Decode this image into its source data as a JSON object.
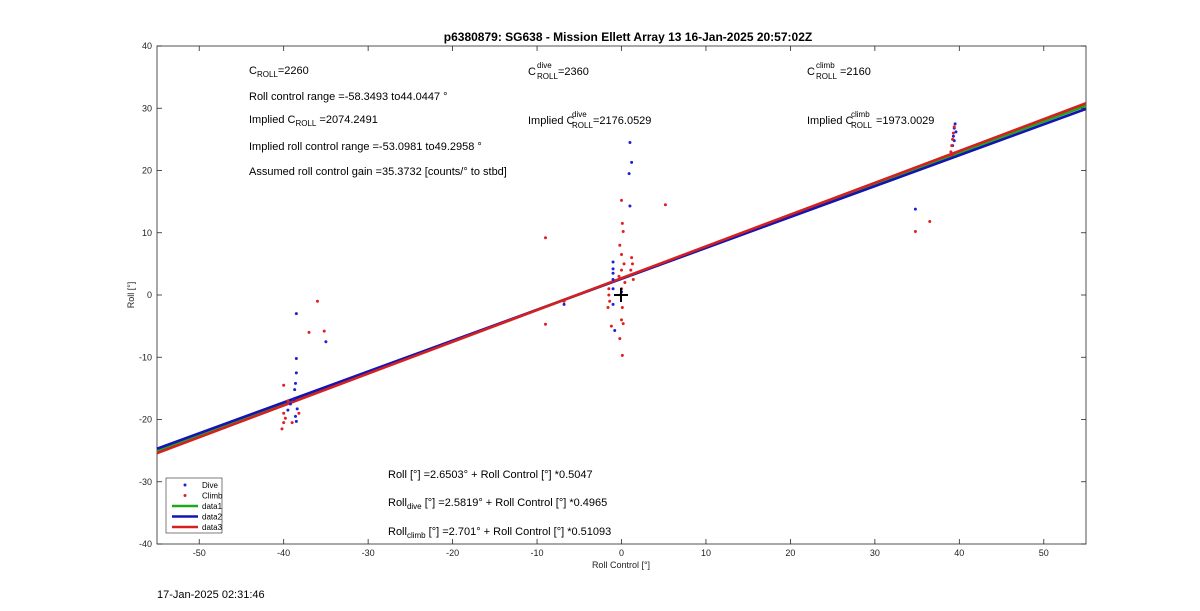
{
  "chart_data": {
    "type": "scatter",
    "title": "p6380879: SG638 - Mission Ellett Array 13 16-Jan-2025 20:57:02Z",
    "xlabel": "Roll Control [°]",
    "ylabel": "Roll [°]",
    "xlim": [
      -55,
      55
    ],
    "ylim": [
      -40,
      40
    ],
    "xticks": [
      "-50",
      "-40",
      "-30",
      "-20",
      "-10",
      "0",
      "10",
      "20",
      "30",
      "40",
      "50"
    ],
    "yticks": [
      "40",
      "30",
      "20",
      "10",
      "0",
      "-10",
      "-20",
      "-30",
      "-40"
    ],
    "grid": false,
    "legend_position": "bottom-left",
    "series": [
      {
        "name": "Dive",
        "color": "#1f1fd6",
        "marker": "dot",
        "points": [
          [
            -38.5,
            -3.0
          ],
          [
            -38.5,
            -10.2
          ],
          [
            -38.5,
            -12.5
          ],
          [
            -38.6,
            -14.2
          ],
          [
            -38.7,
            -15.2
          ],
          [
            -38.8,
            -16.8
          ],
          [
            -38.4,
            -18.3
          ],
          [
            -38.6,
            -19.5
          ],
          [
            -38.5,
            -20.3
          ],
          [
            -39.2,
            -17.5
          ],
          [
            -39.5,
            -18.5
          ],
          [
            -35.0,
            -7.5
          ],
          [
            -6.8,
            -1.5
          ],
          [
            1.0,
            24.5
          ],
          [
            1.2,
            21.3
          ],
          [
            0.9,
            19.5
          ],
          [
            1.0,
            14.3
          ],
          [
            -1.0,
            5.3
          ],
          [
            -1.0,
            4.2
          ],
          [
            -1.0,
            3.5
          ],
          [
            -1.0,
            2.5
          ],
          [
            -1.0,
            1.0
          ],
          [
            -1.0,
            -1.5
          ],
          [
            -0.8,
            -5.7
          ],
          [
            0.0,
            0.5
          ],
          [
            39.5,
            27.5
          ],
          [
            39.4,
            26.8
          ],
          [
            39.6,
            26.2
          ],
          [
            39.3,
            25.5
          ],
          [
            39.4,
            24.8
          ],
          [
            39.2,
            24.0
          ],
          [
            34.8,
            13.8
          ]
        ]
      },
      {
        "name": "Climb",
        "color": "#e02020",
        "marker": "dot",
        "points": [
          [
            -40.0,
            -14.5
          ],
          [
            -39.5,
            -17.0
          ],
          [
            -40.0,
            -19.0
          ],
          [
            -39.8,
            -19.8
          ],
          [
            -40.0,
            -20.5
          ],
          [
            -40.2,
            -21.5
          ],
          [
            -39.0,
            -20.5
          ],
          [
            -38.2,
            -19.0
          ],
          [
            -37.0,
            -6.0
          ],
          [
            -36.0,
            -1.0
          ],
          [
            -35.2,
            -5.8
          ],
          [
            -6.8,
            -1.0
          ],
          [
            -9.0,
            9.2
          ],
          [
            -9.0,
            -4.7
          ],
          [
            0.0,
            15.2
          ],
          [
            0.1,
            11.5
          ],
          [
            0.2,
            10.2
          ],
          [
            -0.2,
            8.0
          ],
          [
            0.0,
            6.5
          ],
          [
            0.3,
            5.0
          ],
          [
            0.0,
            4.0
          ],
          [
            -0.3,
            3.0
          ],
          [
            0.4,
            2.0
          ],
          [
            0.0,
            1.0
          ],
          [
            -0.1,
            0.0
          ],
          [
            0.1,
            -2.0
          ],
          [
            0.0,
            -4.0
          ],
          [
            0.2,
            -4.6
          ],
          [
            -0.2,
            -7.0
          ],
          [
            0.1,
            -9.7
          ],
          [
            -1.5,
            0.0
          ],
          [
            -1.4,
            -1.0
          ],
          [
            -1.6,
            -2.0
          ],
          [
            -1.5,
            1.0
          ],
          [
            -1.2,
            -5.0
          ],
          [
            1.2,
            6.0
          ],
          [
            1.3,
            5.0
          ],
          [
            1.1,
            4.0
          ],
          [
            1.0,
            3.2
          ],
          [
            1.4,
            2.5
          ],
          [
            5.2,
            14.5
          ],
          [
            34.8,
            10.2
          ],
          [
            36.5,
            11.8
          ],
          [
            39.4,
            27.0
          ],
          [
            39.3,
            26.0
          ],
          [
            39.2,
            25.0
          ],
          [
            39.1,
            24.0
          ],
          [
            39.0,
            23.0
          ],
          [
            39.1,
            22.5
          ]
        ]
      },
      {
        "name": "data1",
        "color": "#1fa81f",
        "type": "line",
        "x": [
          -55,
          55
        ],
        "y": [
          -25.1,
          30.4
        ]
      },
      {
        "name": "data2",
        "color": "#1414b4",
        "type": "line",
        "x": [
          -55,
          55
        ],
        "y": [
          -24.7,
          29.9
        ]
      },
      {
        "name": "data3",
        "color": "#d42020",
        "type": "line",
        "x": [
          -55,
          55
        ],
        "y": [
          -25.4,
          30.8
        ]
      }
    ]
  },
  "annotations": {
    "c_roll": {
      "main": "C",
      "sub": "ROLL",
      "value": "=2260"
    },
    "roll_range": "Roll control range =-58.3493 to44.0447 °",
    "implied_c_roll": {
      "prefix": "Implied C",
      "sub": "ROLL",
      "value": " =2074.2491"
    },
    "implied_range": "Implied roll control range =-53.0981 to49.2958 °",
    "gain": "Assumed roll control gain =35.3732 [counts/° to stbd]",
    "c_roll_dive": {
      "main": "C",
      "sup": "dive",
      "sub": "ROLL",
      "value": " =2360"
    },
    "implied_c_roll_dive": {
      "prefix": "Implied C",
      "sup": "dive",
      "sub": "ROLL",
      "value": " =2176.0529"
    },
    "c_roll_climb": {
      "main": "C",
      "sup": "climb",
      "sub": "ROLL",
      "value": " =2160"
    },
    "implied_c_roll_climb": {
      "prefix": "Implied C",
      "sup": "climb",
      "sub": "ROLL",
      "value": " =1973.0029"
    },
    "fit_all": "Roll [°] =2.6503° + Roll Control [°] *0.5047",
    "fit_dive": {
      "prefix": "Roll",
      "sub": "dive",
      "rest": " [°] =2.5819° + Roll Control [°] *0.4965"
    },
    "fit_climb": {
      "prefix": "Roll",
      "sub": "climb",
      "rest": " [°] =2.701° + Roll Control [°] *0.51093"
    }
  },
  "legend": [
    {
      "label": "Dive",
      "kind": "dot",
      "color": "#1f1fd6"
    },
    {
      "label": "Climb",
      "kind": "dot",
      "color": "#e02020"
    },
    {
      "label": "data1",
      "kind": "line",
      "color": "#1fa81f"
    },
    {
      "label": "data2",
      "kind": "line",
      "color": "#1414b4"
    },
    {
      "label": "data3",
      "kind": "line",
      "color": "#d42020"
    }
  ],
  "timestamp": "17-Jan-2025 02:31:46"
}
